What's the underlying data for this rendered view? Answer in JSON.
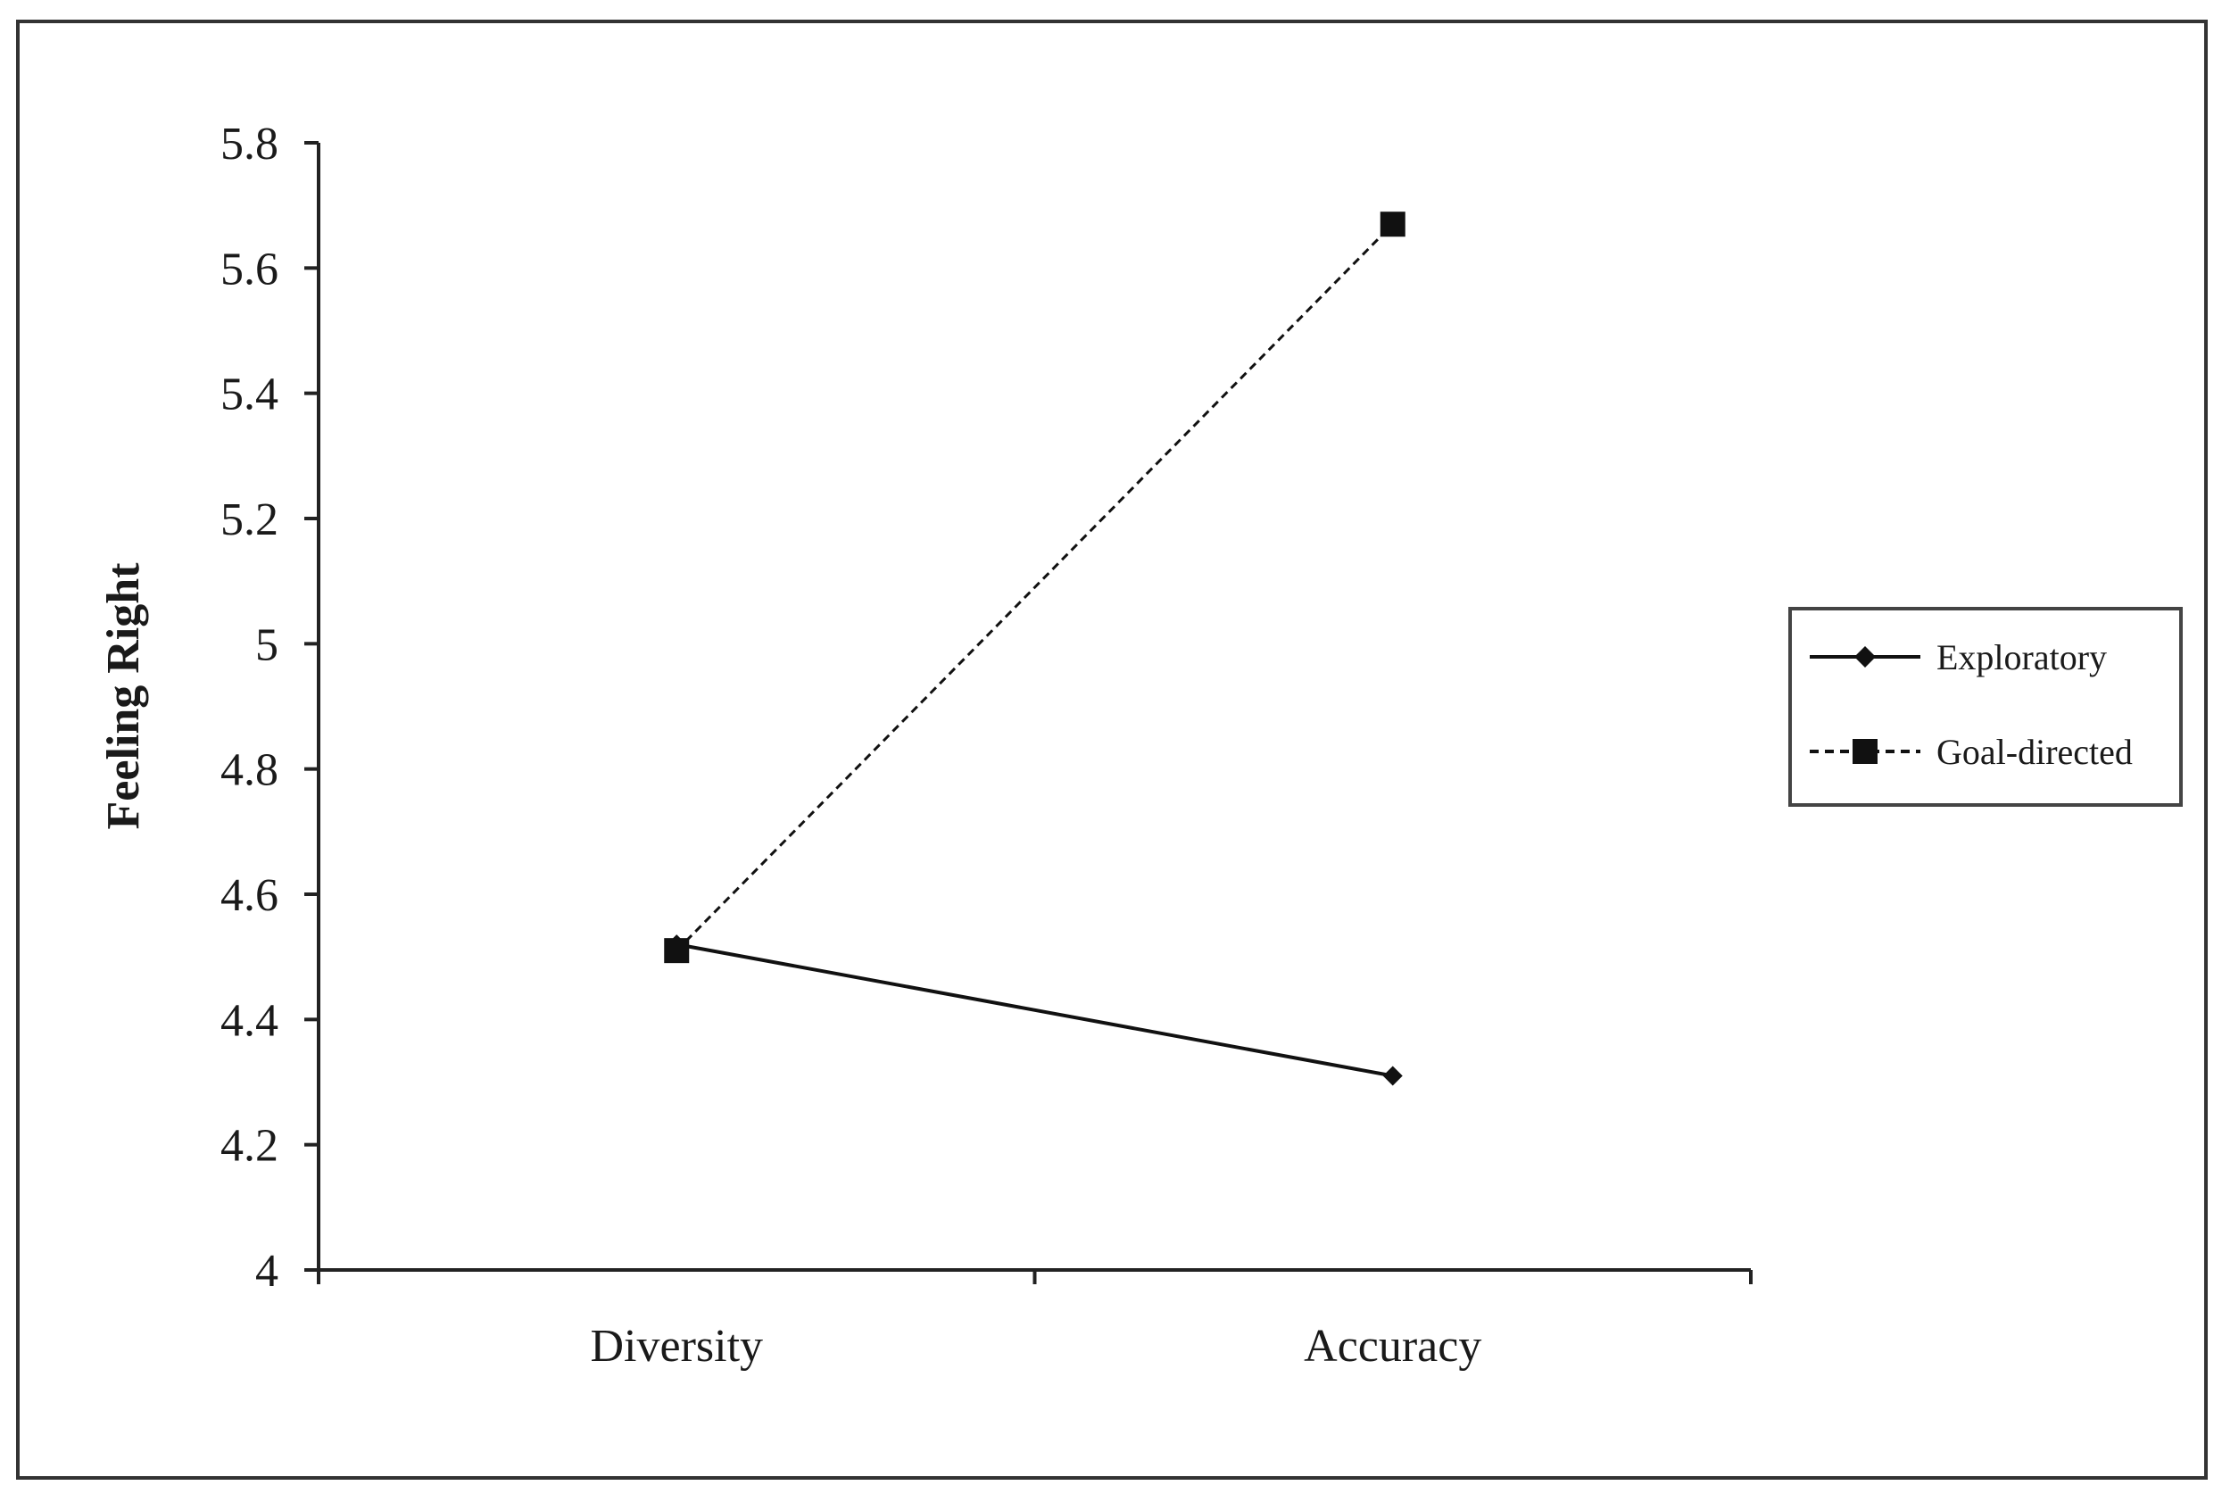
{
  "chart_data": {
    "type": "line",
    "categories": [
      "Diversity",
      "Accuracy"
    ],
    "series": [
      {
        "name": "Exploratory",
        "values": [
          4.52,
          4.31
        ],
        "line_style": "solid",
        "marker": "diamond"
      },
      {
        "name": "Goal-directed",
        "values": [
          4.51,
          5.67
        ],
        "line_style": "dashed",
        "marker": "square"
      }
    ],
    "title": "",
    "xlabel": "",
    "ylabel": "Feeling Right",
    "ylim": [
      4,
      5.8
    ],
    "yticks": [
      4,
      4.2,
      4.4,
      4.6,
      4.8,
      5,
      5.2,
      5.4,
      5.6,
      5.8
    ],
    "ytick_labels": [
      "4",
      "4.2",
      "4.4",
      "4.6",
      "4.8",
      "5",
      "5.2",
      "5.4",
      "5.6",
      "5.8"
    ],
    "grid": false,
    "legend_position": "right",
    "colors": {
      "series": "#111111",
      "axis": "#222222",
      "frame": "#333333",
      "legend_border": "#444444"
    }
  }
}
